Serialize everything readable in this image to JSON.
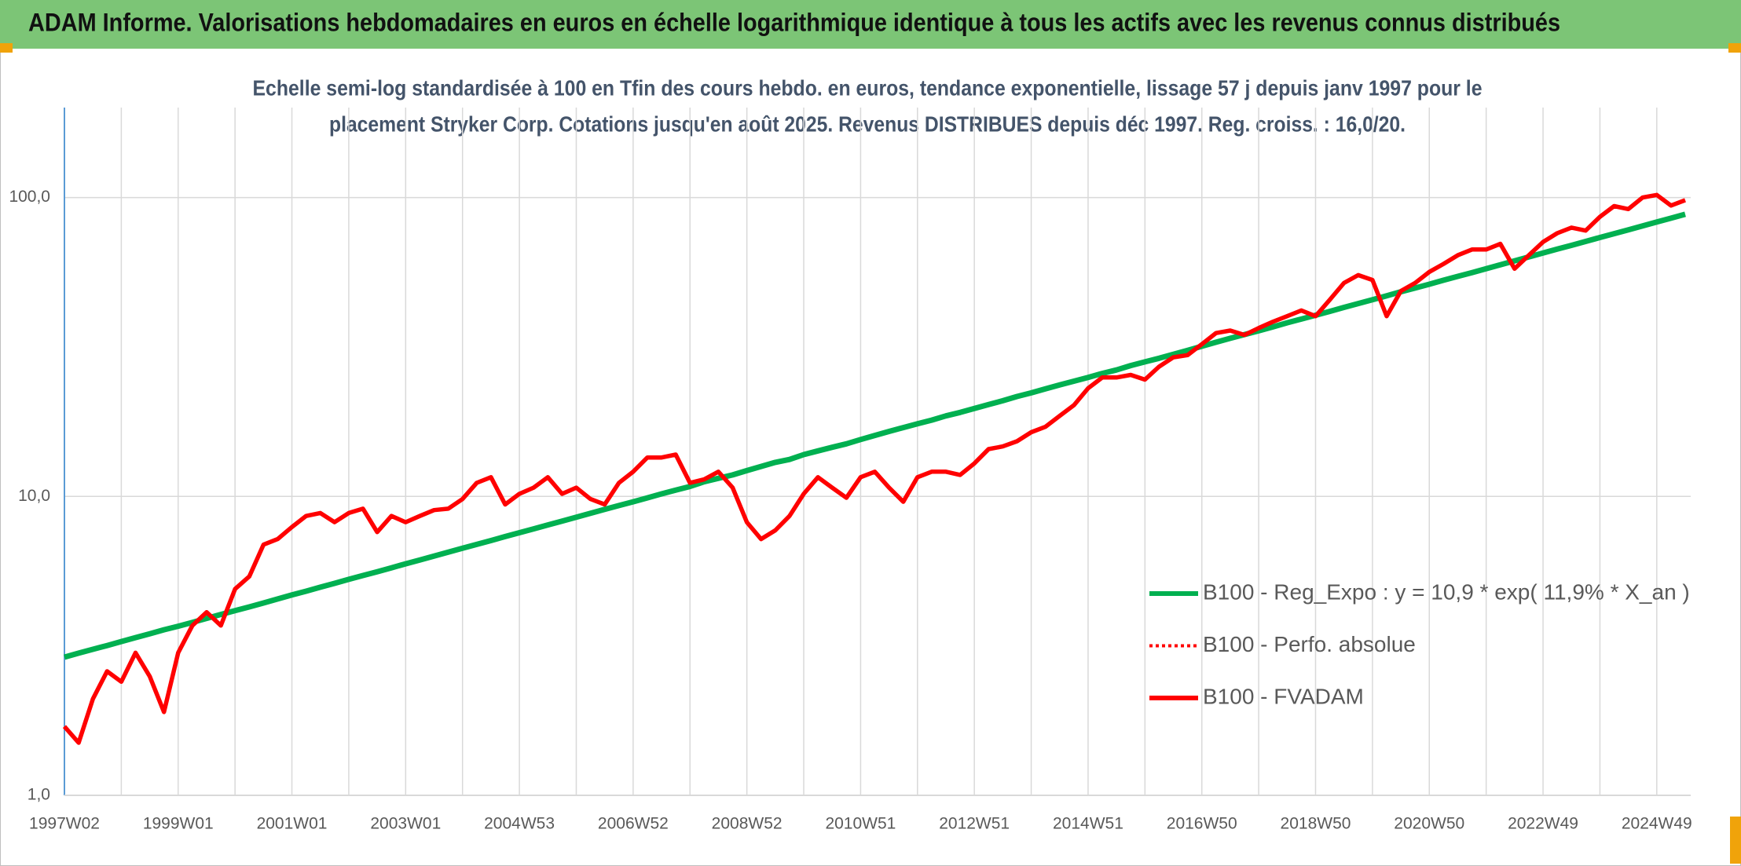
{
  "chart_data": {
    "type": "line",
    "title": "ADAM Informe. Valorisations hebdomadaires en euros en échelle logarithmique identique à tous les actifs avec les revenus connus distribués",
    "subtitle": [
      "Echelle semi-log standardisée à 100 en Tfin des cours hebdo. en euros, tendance exponentielle, lissage 57 j depuis janv 1997 pour le",
      "placement Stryker Corp. Cotations jusqu'en août 2025. Revenus DISTRIBUES depuis déc 1997. Reg. croiss. : 16,0/20."
    ],
    "log_scale": true,
    "grid": true,
    "legend": "right",
    "ylim": [
      1,
      200
    ],
    "yticks": [
      {
        "value": 1,
        "label": "1,0"
      },
      {
        "value": 10,
        "label": "10,0"
      },
      {
        "value": 100,
        "label": "100,0"
      }
    ],
    "categories": [
      "1997W02",
      null,
      null,
      null,
      null,
      null,
      null,
      null,
      "1999W01",
      null,
      null,
      null,
      null,
      null,
      null,
      null,
      "2001W01",
      null,
      null,
      null,
      null,
      null,
      null,
      null,
      "2003W01",
      null,
      null,
      null,
      null,
      null,
      null,
      null,
      "2004W53",
      null,
      null,
      null,
      null,
      null,
      null,
      null,
      "2006W52",
      null,
      null,
      null,
      null,
      null,
      null,
      null,
      "2008W52",
      null,
      null,
      null,
      null,
      null,
      null,
      null,
      "2010W51",
      null,
      null,
      null,
      null,
      null,
      null,
      null,
      "2012W51",
      null,
      null,
      null,
      null,
      null,
      null,
      null,
      "2014W51",
      null,
      null,
      null,
      null,
      null,
      null,
      null,
      "2016W50",
      null,
      null,
      null,
      null,
      null,
      null,
      null,
      "2018W50",
      null,
      null,
      null,
      null,
      null,
      null,
      null,
      "2020W50",
      null,
      null,
      null,
      null,
      null,
      null,
      null,
      "2022W49",
      null,
      null,
      null,
      null,
      null,
      null,
      null,
      "2024W49",
      null,
      null
    ],
    "series": [
      {
        "name": "B100 - Reg_Expo : y = 10,9 * exp( 11,9% *  X_an )",
        "color": "#00b050",
        "dash": false,
        "values": [
          2.9,
          2.99,
          3.08,
          3.17,
          3.27,
          3.37,
          3.47,
          3.58,
          3.68,
          3.79,
          3.91,
          4.03,
          4.15,
          4.27,
          4.4,
          4.54,
          4.68,
          4.82,
          4.97,
          5.12,
          5.28,
          5.44,
          5.6,
          5.77,
          5.95,
          6.13,
          6.32,
          6.51,
          6.71,
          6.91,
          7.12,
          7.34,
          7.56,
          7.79,
          8.03,
          8.27,
          8.52,
          8.78,
          9.05,
          9.32,
          9.6,
          9.89,
          10.2,
          10.5,
          10.8,
          11.2,
          11.5,
          11.8,
          12.2,
          12.6,
          13.0,
          13.3,
          13.8,
          14.2,
          14.6,
          15.0,
          15.5,
          16.0,
          16.5,
          17.0,
          17.5,
          18.0,
          18.6,
          19.1,
          19.7,
          20.3,
          20.9,
          21.6,
          22.2,
          22.9,
          23.6,
          24.3,
          25.0,
          25.8,
          26.5,
          27.4,
          28.2,
          29.0,
          29.9,
          30.8,
          31.8,
          32.8,
          33.8,
          34.8,
          35.8,
          36.9,
          38.1,
          39.2,
          40.4,
          41.6,
          42.9,
          44.2,
          45.5,
          46.9,
          48.4,
          49.8,
          51.3,
          52.9,
          54.5,
          56.1,
          57.8,
          59.6,
          61.4,
          63.3,
          65.2,
          67.2,
          69.2,
          71.3,
          73.5,
          75.7,
          78.0,
          80.4,
          82.8,
          85.3,
          87.9
        ]
      },
      {
        "name": "B100 - Perfo. absolue",
        "color": "#ff0000",
        "dash": true,
        "values": [
          1.7,
          1.5,
          2.1,
          2.6,
          2.4,
          3.0,
          2.5,
          1.9,
          3.0,
          3.7,
          4.1,
          3.7,
          4.9,
          5.4,
          6.9,
          7.2,
          7.9,
          8.6,
          8.8,
          8.2,
          8.8,
          9.1,
          7.6,
          8.6,
          8.2,
          8.6,
          9.0,
          9.1,
          9.8,
          11.1,
          11.6,
          9.4,
          10.2,
          10.7,
          11.6,
          10.2,
          10.7,
          9.8,
          9.4,
          11.1,
          12.1,
          13.5,
          13.5,
          13.8,
          11.1,
          11.4,
          12.1,
          10.7,
          8.2,
          7.2,
          7.7,
          8.6,
          10.2,
          11.6,
          10.7,
          9.9,
          11.6,
          12.1,
          10.7,
          9.6,
          11.6,
          12.1,
          12.1,
          11.8,
          12.9,
          14.4,
          14.7,
          15.3,
          16.4,
          17.1,
          18.6,
          20.2,
          23.0,
          25.0,
          25.0,
          25.5,
          24.6,
          27.2,
          29.2,
          29.7,
          32.3,
          35.2,
          35.9,
          34.7,
          36.6,
          38.4,
          40.1,
          41.9,
          40.1,
          45.5,
          51.8,
          55.0,
          53.0,
          40.1,
          48.7,
          51.8,
          56.4,
          60.0,
          64.1,
          67.0,
          67.0,
          70.0,
          57.8,
          64.1,
          71.0,
          76.0,
          79.3,
          77.5,
          86.2,
          93.6,
          91.5,
          100,
          102,
          94,
          98
        ]
      },
      {
        "name": "B100 - FVADAM",
        "color": "#ff0000",
        "dash": false,
        "values": [
          1.7,
          1.5,
          2.1,
          2.6,
          2.4,
          3.0,
          2.5,
          1.9,
          3.0,
          3.7,
          4.1,
          3.7,
          4.9,
          5.4,
          6.9,
          7.2,
          7.9,
          8.6,
          8.8,
          8.2,
          8.8,
          9.1,
          7.6,
          8.6,
          8.2,
          8.6,
          9.0,
          9.1,
          9.8,
          11.1,
          11.6,
          9.4,
          10.2,
          10.7,
          11.6,
          10.2,
          10.7,
          9.8,
          9.4,
          11.1,
          12.1,
          13.5,
          13.5,
          13.8,
          11.1,
          11.4,
          12.1,
          10.7,
          8.2,
          7.2,
          7.7,
          8.6,
          10.2,
          11.6,
          10.7,
          9.9,
          11.6,
          12.1,
          10.7,
          9.6,
          11.6,
          12.1,
          12.1,
          11.8,
          12.9,
          14.4,
          14.7,
          15.3,
          16.4,
          17.1,
          18.6,
          20.2,
          23.0,
          25.0,
          25.0,
          25.5,
          24.6,
          27.2,
          29.2,
          29.7,
          32.3,
          35.2,
          35.9,
          34.7,
          36.6,
          38.4,
          40.1,
          41.9,
          40.1,
          45.5,
          51.8,
          55.0,
          53.0,
          40.1,
          48.7,
          51.8,
          56.4,
          60.0,
          64.1,
          67.0,
          67.0,
          70.0,
          57.8,
          64.1,
          71.0,
          76.0,
          79.3,
          77.5,
          86.2,
          93.6,
          91.5,
          100,
          102,
          94,
          98
        ]
      }
    ]
  }
}
